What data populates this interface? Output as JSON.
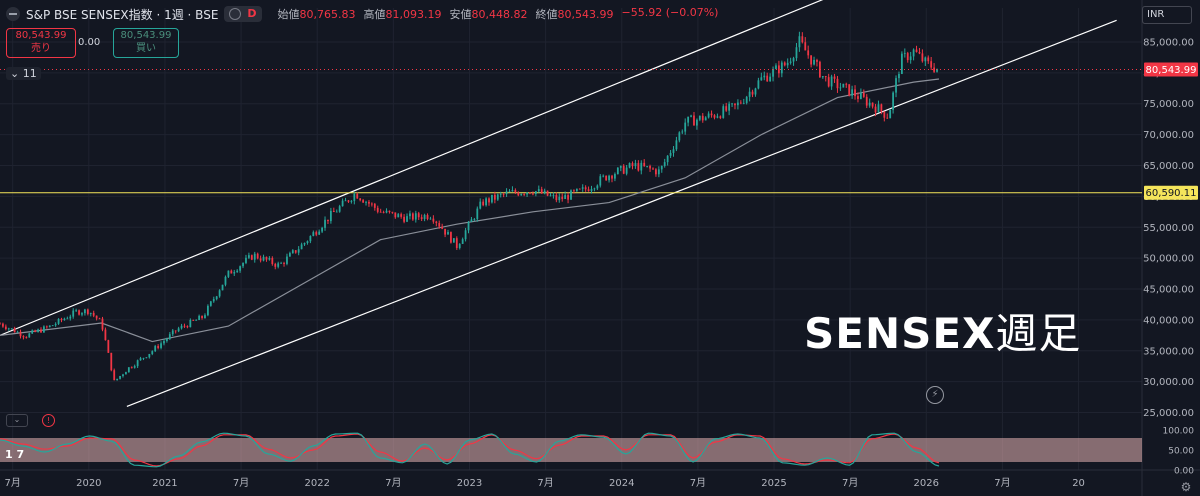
{
  "header": {
    "title": "S&P BSE SENSEX指数 · 1週 · BSE",
    "mode_badge": "D",
    "ohlc": [
      {
        "label": "始値",
        "value": "80,765.83"
      },
      {
        "label": "高値",
        "value": "81,093.19"
      },
      {
        "label": "安値",
        "value": "80,448.82"
      },
      {
        "label": "終値",
        "value": "80,543.99"
      },
      {
        "label": "",
        "value": "−55.92 (−0.07%)"
      }
    ]
  },
  "trade": {
    "sell_price": "80,543.99",
    "sell_label": "売り",
    "spread": "0.00",
    "buy_price": "80,543.99",
    "buy_label": "買い"
  },
  "collapse_label": "11",
  "currency": "INR",
  "watermark": {
    "main": "SENSEX",
    "sub": "週足"
  },
  "osc_label": "1 7",
  "colors": {
    "bg": "#131722",
    "up": "#26a69a",
    "down": "#f23645",
    "hline": "#f5e55b",
    "ma": "#8a8f99",
    "channel": "#ffffff",
    "osc_band": "#e6b3b3"
  },
  "chart_data": {
    "type": "candlestick",
    "x_ticks": [
      "7月",
      "2020",
      "2021",
      "7月",
      "2022",
      "7月",
      "2023",
      "7月",
      "2024",
      "7月",
      "2025",
      "7月",
      "2026",
      "7月",
      "20"
    ],
    "y_ticks": [
      25000,
      30000,
      35000,
      40000,
      45000,
      50000,
      55000,
      60000,
      65000,
      70000,
      75000,
      80000,
      85000
    ],
    "y_tick_labels": [
      "25,000.00",
      "30,000.00",
      "35,000.00",
      "40,000.00",
      "45,000.00",
      "50,000.00",
      "55,000.00",
      "60,000.00",
      "65,000.00",
      "70,000.00",
      "75,000.00",
      "80,000.00",
      "85,000.00"
    ],
    "ylim": [
      22500,
      90500
    ],
    "last_price": 80543.99,
    "last_price_label": "80,543.99",
    "hline": 60590.11,
    "hline_label": "60,590.11",
    "time_range": [
      "2019-06",
      "2026-12"
    ],
    "closes": [
      [
        "2019-06",
        39400
      ],
      [
        "2019-08",
        37400
      ],
      [
        "2019-10",
        39000
      ],
      [
        "2019-12",
        41300
      ],
      [
        "2020-01",
        41500
      ],
      [
        "2020-02",
        39500
      ],
      [
        "2020-03",
        30000
      ],
      [
        "2020-04",
        32000
      ],
      [
        "2020-06",
        35000
      ],
      [
        "2020-08",
        38500
      ],
      [
        "2020-10",
        40500
      ],
      [
        "2020-12",
        47500
      ],
      [
        "2021-02",
        50500
      ],
      [
        "2021-04",
        48800
      ],
      [
        "2021-06",
        52500
      ],
      [
        "2021-08",
        56800
      ],
      [
        "2021-10",
        60500
      ],
      [
        "2021-12",
        57500
      ],
      [
        "2022-02",
        56500
      ],
      [
        "2022-04",
        57000
      ],
      [
        "2022-06",
        52000
      ],
      [
        "2022-08",
        59000
      ],
      [
        "2022-10",
        60500
      ],
      [
        "2022-12",
        61000
      ],
      [
        "2023-02",
        59500
      ],
      [
        "2023-04",
        61000
      ],
      [
        "2023-06",
        63500
      ],
      [
        "2023-08",
        65000
      ],
      [
        "2023-10",
        64000
      ],
      [
        "2023-12",
        72000
      ],
      [
        "2024-02",
        73000
      ],
      [
        "2024-04",
        74500
      ],
      [
        "2024-06",
        79000
      ],
      [
        "2024-08",
        81500
      ],
      [
        "2024-09",
        85000
      ],
      [
        "2024-11",
        79000
      ],
      [
        "2025-01",
        77000
      ],
      [
        "2025-03",
        74500
      ],
      [
        "2025-04",
        73000
      ],
      [
        "2025-05",
        82000
      ],
      [
        "2025-06",
        83500
      ],
      [
        "2025-07",
        81500
      ],
      [
        "2025-08",
        80544
      ]
    ],
    "ma_values": [
      [
        "2019-06",
        37500
      ],
      [
        "2020-02",
        39500
      ],
      [
        "2020-06",
        36500
      ],
      [
        "2020-12",
        39000
      ],
      [
        "2021-06",
        46000
      ],
      [
        "2021-12",
        53000
      ],
      [
        "2022-06",
        55500
      ],
      [
        "2022-12",
        57500
      ],
      [
        "2023-06",
        59000
      ],
      [
        "2023-12",
        63000
      ],
      [
        "2024-06",
        70000
      ],
      [
        "2024-12",
        76000
      ],
      [
        "2025-06",
        78500
      ],
      [
        "2025-08",
        79000
      ]
    ],
    "channel": {
      "upper": [
        [
          "2019-06",
          37500
        ],
        [
          "2024-11",
          92000
        ]
      ],
      "lower": [
        [
          "2020-04",
          26000
        ],
        [
          "2026-10",
          88500
        ]
      ]
    },
    "oscillator": {
      "ylim": [
        0,
        100
      ],
      "ticks": [
        "100.00",
        "50.00",
        "0.00"
      ],
      "band": [
        20,
        80
      ],
      "k_values": [
        75,
        60,
        45,
        65,
        85,
        72,
        12,
        8,
        35,
        70,
        92,
        85,
        40,
        22,
        60,
        90,
        92,
        30,
        18,
        65,
        15,
        75,
        90,
        40,
        20,
        72,
        88,
        82,
        40,
        92,
        85,
        20,
        78,
        90,
        80,
        18,
        12,
        30,
        12,
        88,
        92,
        45,
        10
      ],
      "d_values": [
        78,
        65,
        52,
        60,
        80,
        78,
        25,
        10,
        28,
        60,
        88,
        88,
        52,
        30,
        50,
        85,
        90,
        45,
        22,
        55,
        25,
        65,
        88,
        50,
        28,
        62,
        85,
        85,
        50,
        88,
        88,
        30,
        70,
        88,
        85,
        28,
        15,
        25,
        18,
        78,
        90,
        55,
        18
      ]
    }
  }
}
